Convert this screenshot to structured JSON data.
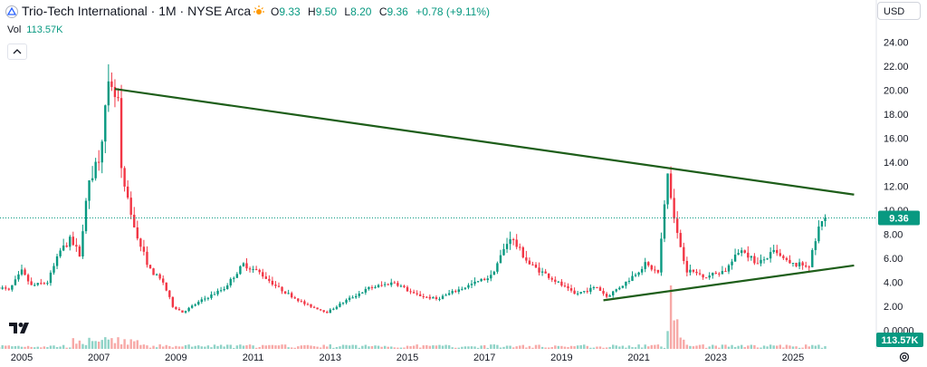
{
  "header": {
    "title": "Trio-Tech International · 1M · NYSE Arca",
    "ohlc": [
      {
        "key": "O",
        "value": "9.33"
      },
      {
        "key": "H",
        "value": "9.50"
      },
      {
        "key": "L",
        "value": "8.20"
      },
      {
        "key": "C",
        "value": "9.36"
      },
      {
        "key": "chg",
        "value": "+0.78 (+9.11%)"
      }
    ],
    "volume_label": "Vol",
    "volume_value": "113.57K",
    "currency": "USD"
  },
  "colors": {
    "up": "#089981",
    "down": "#f23645",
    "trendline": "#1e5e1a",
    "vol_up": "#8fd3c7",
    "vol_down": "#f7a9a7"
  },
  "chart_data": {
    "type": "candlestick",
    "x_ticks": [
      "2005",
      "2007",
      "2009",
      "2011",
      "2013",
      "2015",
      "2017",
      "2019",
      "2021",
      "2023",
      "2025"
    ],
    "y_ticks": [
      "24.00",
      "22.00",
      "20.00",
      "18.00",
      "16.00",
      "14.00",
      "12.00",
      "10.00",
      "8.00",
      "6.00",
      "4.00",
      "2.00",
      "0.0000"
    ],
    "ylim": [
      0,
      25
    ],
    "last_price_label": "9.36",
    "last_price": 9.36,
    "volume_label": "113.57K",
    "approx_monthly_close": [
      {
        "date": "2004-06",
        "close": 3.6
      },
      {
        "date": "2004-09",
        "close": 3.3
      },
      {
        "date": "2005-01",
        "close": 4.9
      },
      {
        "date": "2005-04",
        "close": 3.7
      },
      {
        "date": "2005-09",
        "close": 4.0
      },
      {
        "date": "2006-01",
        "close": 6.6
      },
      {
        "date": "2006-04",
        "close": 7.5
      },
      {
        "date": "2006-07",
        "close": 6.4
      },
      {
        "date": "2006-10",
        "close": 12.5
      },
      {
        "date": "2007-01",
        "close": 14.5
      },
      {
        "date": "2007-04",
        "close": 20.0
      },
      {
        "date": "2007-07",
        "close": 19.0
      },
      {
        "date": "2007-08",
        "close": 13.0
      },
      {
        "date": "2007-11",
        "close": 9.5
      },
      {
        "date": "2008-02",
        "close": 7.0
      },
      {
        "date": "2008-05",
        "close": 5.0
      },
      {
        "date": "2008-09",
        "close": 4.0
      },
      {
        "date": "2008-12",
        "close": 2.0
      },
      {
        "date": "2009-03",
        "close": 1.5
      },
      {
        "date": "2009-09",
        "close": 2.5
      },
      {
        "date": "2010-04",
        "close": 3.5
      },
      {
        "date": "2010-10",
        "close": 5.5
      },
      {
        "date": "2011-03",
        "close": 4.8
      },
      {
        "date": "2011-09",
        "close": 3.5
      },
      {
        "date": "2012-05",
        "close": 2.2
      },
      {
        "date": "2012-12",
        "close": 1.5
      },
      {
        "date": "2013-06",
        "close": 2.5
      },
      {
        "date": "2014-01",
        "close": 3.5
      },
      {
        "date": "2014-09",
        "close": 4.0
      },
      {
        "date": "2015-03",
        "close": 3.0
      },
      {
        "date": "2015-10",
        "close": 2.6
      },
      {
        "date": "2016-06",
        "close": 3.5
      },
      {
        "date": "2017-03",
        "close": 4.5
      },
      {
        "date": "2017-09",
        "close": 7.8
      },
      {
        "date": "2018-03",
        "close": 5.5
      },
      {
        "date": "2018-09",
        "close": 4.5
      },
      {
        "date": "2019-05",
        "close": 3.0
      },
      {
        "date": "2019-12",
        "close": 3.6
      },
      {
        "date": "2020-03",
        "close": 2.8
      },
      {
        "date": "2020-09",
        "close": 4.0
      },
      {
        "date": "2021-03",
        "close": 5.5
      },
      {
        "date": "2021-07",
        "close": 4.8
      },
      {
        "date": "2021-10",
        "close": 13.0
      },
      {
        "date": "2022-01",
        "close": 8.0
      },
      {
        "date": "2022-04",
        "close": 5.0
      },
      {
        "date": "2022-10",
        "close": 4.5
      },
      {
        "date": "2023-04",
        "close": 5.0
      },
      {
        "date": "2023-09",
        "close": 6.8
      },
      {
        "date": "2024-02",
        "close": 5.5
      },
      {
        "date": "2024-07",
        "close": 6.5
      },
      {
        "date": "2024-12",
        "close": 5.5
      },
      {
        "date": "2025-06",
        "close": 5.4
      },
      {
        "date": "2025-09",
        "close": 8.5
      },
      {
        "date": "2025-11",
        "close": 9.36
      }
    ],
    "trendlines": [
      {
        "name": "upper",
        "from": {
          "date": "2007-06",
          "price": 20.1
        },
        "to": {
          "date": "2026-08",
          "price": 11.3
        }
      },
      {
        "name": "lower",
        "from": {
          "date": "2020-02",
          "price": 2.5
        },
        "to": {
          "date": "2026-08",
          "price": 5.4
        }
      }
    ]
  }
}
